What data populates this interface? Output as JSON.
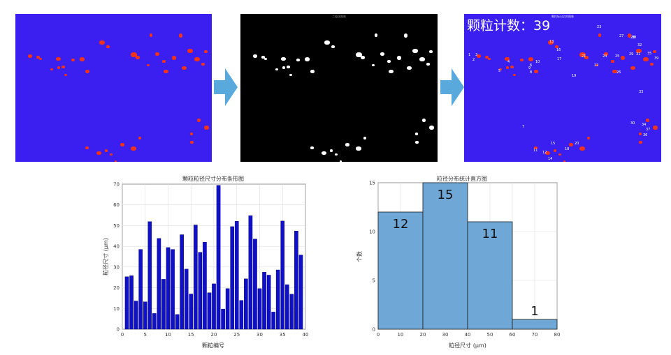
{
  "panels": {
    "original_title": "",
    "binary_title": "二值化图像",
    "labeled_title": "颗粒标记后的图像",
    "count_label": "颗粒计数：",
    "count_value": "39",
    "particle_labels": [
      "1",
      "2",
      "3",
      "4",
      "5",
      "6",
      "7",
      "8",
      "9",
      "10",
      "11",
      "12",
      "13",
      "14",
      "15",
      "16",
      "17",
      "18",
      "19",
      "20",
      "21",
      "22",
      "23",
      "24",
      "25",
      "26",
      "27",
      "28",
      "29",
      "30",
      "31",
      "32",
      "33",
      "34",
      "35",
      "36",
      "37",
      "38",
      "39"
    ]
  },
  "icons": {
    "arrow_icon": "right-arrow-icon",
    "arrow_color": "#5aa9dc"
  },
  "colors": {
    "background": "#3a1ff0",
    "particle": "#f0331d",
    "bar": "#1010c8",
    "hist": "#6fa8d6"
  },
  "chart_data": [
    {
      "type": "bar",
      "title": "颗粒粒径尺寸分布条形图",
      "xlabel": "颗粒编号",
      "ylabel": "粒径尺寸 (μm)",
      "xlim": [
        0,
        40
      ],
      "ylim": [
        0,
        70
      ],
      "xticks": [
        "0",
        "5",
        "10",
        "15",
        "20",
        "25",
        "30",
        "35",
        "40"
      ],
      "yticks": [
        "0",
        "10",
        "20",
        "30",
        "40",
        "50",
        "60",
        "70"
      ],
      "grid": true,
      "x": [
        1,
        2,
        3,
        4,
        5,
        6,
        7,
        8,
        9,
        10,
        11,
        12,
        13,
        14,
        15,
        16,
        17,
        18,
        19,
        20,
        21,
        22,
        23,
        24,
        25,
        26,
        27,
        28,
        29,
        30,
        31,
        32,
        33,
        34,
        35,
        36,
        37,
        38,
        39
      ],
      "values": [
        25.3,
        25.8,
        13.6,
        38.5,
        13.2,
        51.9,
        7.6,
        43.8,
        24.1,
        39.4,
        38.5,
        7.1,
        45.6,
        29.0,
        17.0,
        50.3,
        37.1,
        42.0,
        17.6,
        21.9,
        69.4,
        9.7,
        19.6,
        49.5,
        52.1,
        13.9,
        24.3,
        54.8,
        43.5,
        19.6,
        27.5,
        26.1,
        8.3,
        28.6,
        52.2,
        21.5,
        16.9,
        47.4,
        35.8
      ]
    },
    {
      "type": "bar",
      "title": "粒径分布统计直方图",
      "xlabel": "粒径尺寸 (μm)",
      "ylabel": "个数",
      "xlim": [
        0,
        80
      ],
      "ylim": [
        0,
        15
      ],
      "xticks": [
        "0",
        "10",
        "20",
        "30",
        "40",
        "50",
        "60",
        "70",
        "80"
      ],
      "yticks": [
        "0",
        "5",
        "10",
        "15"
      ],
      "grid": true,
      "bins": [
        [
          0,
          20
        ],
        [
          20,
          40
        ],
        [
          40,
          60
        ],
        [
          60,
          80
        ]
      ],
      "values": [
        12,
        15,
        11,
        1
      ],
      "data_labels": [
        "12",
        "15",
        "11",
        "1"
      ]
    }
  ]
}
